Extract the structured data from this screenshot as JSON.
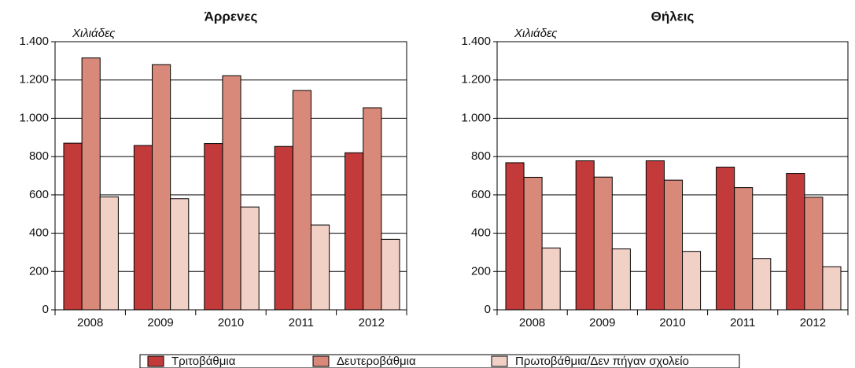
{
  "chart_data": [
    {
      "type": "bar",
      "title": "Άρρενες",
      "y_label": "Χιλιάδες",
      "categories": [
        "2008",
        "2009",
        "2010",
        "2011",
        "2012"
      ],
      "series": [
        {
          "name": "Τριτοβάθμια",
          "color": "#c23b3a",
          "values": [
            870,
            858,
            868,
            853,
            820
          ]
        },
        {
          "name": "Δευτεροβάθμια",
          "color": "#d98979",
          "values": [
            1315,
            1280,
            1222,
            1145,
            1055
          ]
        },
        {
          "name": "Πρωτοβάθμια/Δεν πήγαν σχολείο",
          "color": "#f1d0c6",
          "values": [
            590,
            580,
            537,
            443,
            368
          ]
        }
      ],
      "ylim": [
        0,
        1400
      ],
      "yticks": [
        0,
        200,
        400,
        600,
        800,
        {
          "value": 1000,
          "label": "1.000"
        },
        {
          "value": 1200,
          "label": "1.200"
        },
        {
          "value": 1400,
          "label": "1.400"
        }
      ],
      "grid": true
    },
    {
      "type": "bar",
      "title": "Θήλεις",
      "y_label": "Χιλιάδες",
      "categories": [
        "2008",
        "2009",
        "2010",
        "2011",
        "2012"
      ],
      "series": [
        {
          "color": "#c23b3a",
          "values": [
            768,
            778,
            778,
            745,
            712
          ]
        },
        {
          "color": "#d98979",
          "values": [
            692,
            693,
            677,
            638,
            588
          ]
        },
        {
          "color": "#f1d0c6",
          "values": [
            323,
            318,
            305,
            268,
            225
          ]
        }
      ],
      "ylim": [
        0,
        1400
      ],
      "yticks": [
        0,
        200,
        400,
        600,
        800,
        {
          "value": 1000,
          "label": "1.000"
        },
        {
          "value": 1200,
          "label": "1.200"
        },
        {
          "value": 1400,
          "label": "1.400"
        }
      ],
      "grid": true
    }
  ]
}
